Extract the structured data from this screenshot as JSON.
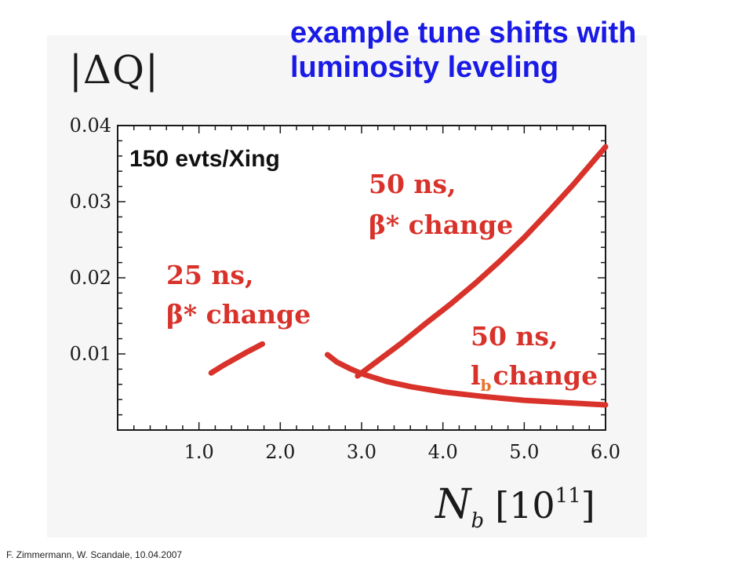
{
  "title": {
    "line1": "example tune shifts with",
    "line2": "luminosity leveling"
  },
  "footer": "F.  Zimmermann,  W.  Scandale, 10.04.2007",
  "colors": {
    "title": "#1a1ae6",
    "curve": "#d8322a",
    "axis": "#1a1a1a"
  },
  "chart_data": {
    "type": "line",
    "ylabel": "|ΔQ|",
    "xlabel": {
      "symbol": "N",
      "subscript": "b",
      "bracket_open": "[",
      "base": "10",
      "exponent": "11",
      "bracket_close": "]"
    },
    "xlim": [
      0,
      6.0
    ],
    "ylim": [
      0,
      0.04
    ],
    "xticks": [
      "1.0",
      "2.0",
      "3.0",
      "4.0",
      "5.0",
      "6.0"
    ],
    "yticks": [
      "0.01",
      "0.02",
      "0.03",
      "0.04"
    ],
    "inset_label": "150 evts/Xing",
    "series": [
      {
        "id": "25ns-beta-star",
        "label_line1": "25 ns,",
        "label_line2": "β* change",
        "x": [
          1.15,
          1.3,
          1.45,
          1.6,
          1.78
        ],
        "y": [
          0.0075,
          0.0085,
          0.0094,
          0.0103,
          0.0113
        ]
      },
      {
        "id": "50ns-beta-star",
        "label_line1": "50 ns,",
        "label_line2": "β* change",
        "x": [
          2.95,
          3.2,
          3.5,
          3.8,
          4.1,
          4.4,
          4.7,
          5.0,
          5.3,
          5.6,
          6.0
        ],
        "y": [
          0.0071,
          0.0091,
          0.0115,
          0.0141,
          0.0166,
          0.0193,
          0.0222,
          0.0253,
          0.0287,
          0.0322,
          0.0372
        ]
      },
      {
        "id": "50ns-lb",
        "label_line1": "50 ns,",
        "label_line2_main": "l",
        "label_line2_sub": "b",
        "label_line2_rest": "change",
        "x": [
          2.58,
          2.7,
          2.85,
          3.0,
          3.3,
          3.6,
          4.0,
          4.5,
          5.0,
          5.5,
          6.0
        ],
        "y": [
          0.0099,
          0.0089,
          0.0081,
          0.0074,
          0.0064,
          0.0057,
          0.005,
          0.0044,
          0.0039,
          0.0036,
          0.0033
        ]
      }
    ]
  }
}
